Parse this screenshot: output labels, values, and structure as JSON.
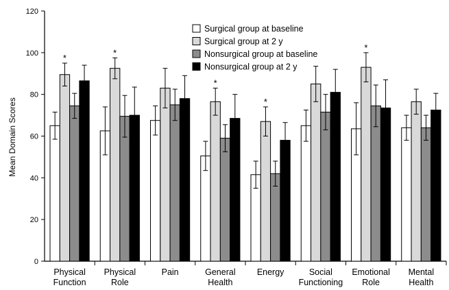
{
  "chart_data": {
    "type": "bar",
    "ylabel": "Mean Domain Scores",
    "ylim": [
      0,
      120
    ],
    "yticks": [
      0,
      20,
      40,
      60,
      80,
      100,
      120
    ],
    "categories": [
      [
        "Physical",
        "Function"
      ],
      [
        "Physical",
        "Role"
      ],
      [
        "Pain"
      ],
      [
        "General",
        "Health"
      ],
      [
        "Energy"
      ],
      [
        "Social",
        "Functioning"
      ],
      [
        "Emotional",
        "Role"
      ],
      [
        "Mental",
        "Health"
      ]
    ],
    "series": [
      {
        "name": "Surgical group at baseline",
        "color": "#ffffff",
        "values": [
          65,
          62.5,
          67.5,
          50.5,
          41.5,
          65,
          63.5,
          64
        ],
        "errors": [
          6.5,
          11.5,
          7,
          7,
          6.5,
          7.5,
          12.5,
          6
        ]
      },
      {
        "name": "Surgical group at 2 y",
        "color": "#d9d9d9",
        "values": [
          89.5,
          92.5,
          83,
          76.5,
          67,
          85,
          93,
          76.5
        ],
        "errors": [
          5.5,
          5,
          9.5,
          6.5,
          7,
          8.5,
          7,
          6
        ]
      },
      {
        "name": "Nonsurgical group at baseline",
        "color": "#8c8c8c",
        "values": [
          74.5,
          69.5,
          75,
          59,
          42,
          71.5,
          74.5,
          64
        ],
        "errors": [
          6,
          10,
          7.5,
          6.5,
          6,
          8.5,
          10,
          6
        ]
      },
      {
        "name": "Nonsurgical group at 2 y",
        "color": "#000000",
        "values": [
          86.5,
          70,
          78,
          68.5,
          58,
          81,
          73.5,
          72.5
        ],
        "errors": [
          7.5,
          13.5,
          11,
          11.5,
          8.5,
          11,
          13.5,
          8
        ]
      }
    ],
    "annotations": [
      {
        "category": 0,
        "series": 1,
        "text": "*"
      },
      {
        "category": 1,
        "series": 1,
        "text": "*"
      },
      {
        "category": 3,
        "series": 1,
        "text": "*"
      },
      {
        "category": 4,
        "series": 1,
        "text": "*"
      },
      {
        "category": 6,
        "series": 1,
        "text": "*"
      }
    ],
    "legend_position": "top-right",
    "grid": false
  }
}
